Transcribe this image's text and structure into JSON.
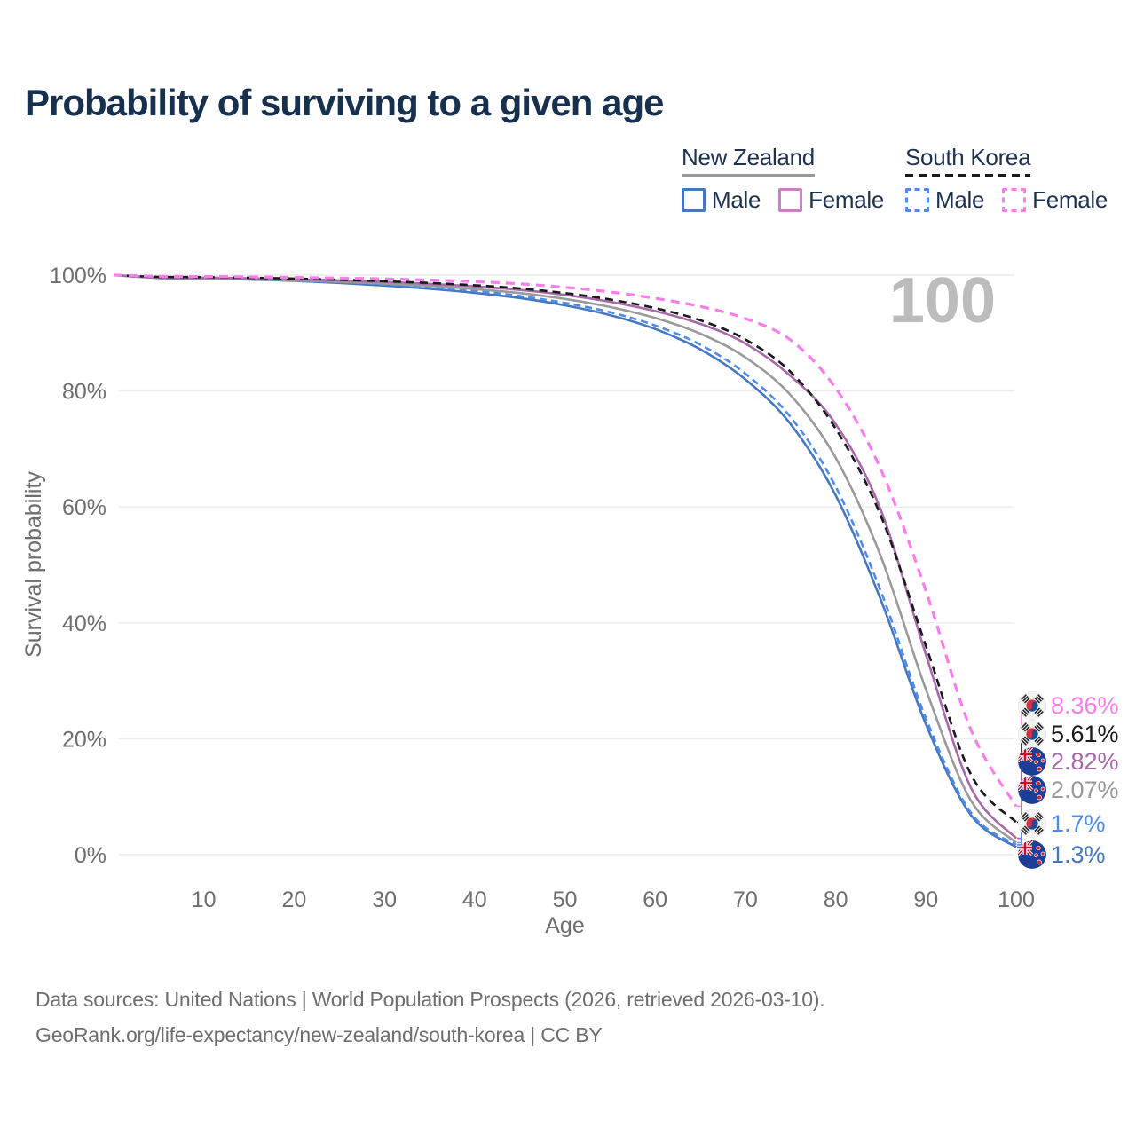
{
  "page": {
    "title": "Probability of surviving to a given age"
  },
  "legend": {
    "groups": [
      {
        "id": "nz",
        "label": "New Zealand",
        "line_style": "solid",
        "underline_color": "#999999",
        "items": [
          {
            "label": "Male",
            "color": "#4678bf",
            "dashed": false
          },
          {
            "label": "Female",
            "color": "#c583c5",
            "dashed": false
          }
        ]
      },
      {
        "id": "kr",
        "label": "South Korea",
        "line_style": "dashed",
        "underline_color": "#1a1a1a",
        "items": [
          {
            "label": "Male",
            "color": "#4e8bf0",
            "dashed": true
          },
          {
            "label": "Female",
            "color": "#fb7ceb",
            "dashed": true
          }
        ]
      }
    ]
  },
  "chart_data": {
    "type": "line",
    "title": "Probability of surviving to a given age",
    "xlabel": "Age",
    "ylabel": "Survival probability",
    "xlim": [
      0,
      100
    ],
    "ylim": [
      0,
      100
    ],
    "x_ticks": [
      10,
      20,
      30,
      40,
      50,
      60,
      70,
      80,
      90,
      100
    ],
    "y_ticks": [
      "0%",
      "20%",
      "40%",
      "60%",
      "80%",
      "100%"
    ],
    "grid": "horizontal-only",
    "legend_position": "top-right",
    "watermark_age": "100",
    "x": [
      0,
      5,
      10,
      15,
      20,
      25,
      30,
      35,
      40,
      45,
      50,
      55,
      60,
      65,
      70,
      75,
      80,
      85,
      90,
      95,
      100
    ],
    "series": [
      {
        "id": "nz_male",
        "name": "New Zealand Male",
        "country": "nz",
        "sex": "male",
        "color": "#4678bf",
        "dashed": false,
        "end_label": "1.3%",
        "values": [
          100,
          99.5,
          99.4,
          99.25,
          99.0,
          98.65,
          98.2,
          97.65,
          96.95,
          96.05,
          94.8,
          93.1,
          90.7,
          87.2,
          82.0,
          74.3,
          62.0,
          44.0,
          22.5,
          6.8,
          1.3
        ]
      },
      {
        "id": "sk_male",
        "name": "South Korea Male",
        "country": "kr",
        "sex": "male",
        "color": "#4e8bf0",
        "dashed": true,
        "end_label": "1.7%",
        "values": [
          100,
          99.6,
          99.5,
          99.35,
          99.1,
          98.8,
          98.4,
          97.9,
          97.3,
          96.4,
          95.2,
          93.6,
          91.3,
          88.0,
          83.0,
          75.5,
          63.5,
          45.5,
          23.5,
          7.2,
          1.7
        ]
      },
      {
        "id": "nz_total",
        "name": "New Zealand",
        "country": "nz",
        "sex": "total",
        "color": "#9a9a9a",
        "dashed": false,
        "end_label": "2.07%",
        "values": [
          100,
          99.55,
          99.45,
          99.3,
          99.1,
          98.85,
          98.55,
          98.15,
          97.6,
          96.9,
          95.9,
          94.5,
          92.6,
          89.9,
          85.8,
          79.3,
          68.5,
          51.5,
          28.5,
          9.3,
          2.07
        ]
      },
      {
        "id": "nz_female",
        "name": "New Zealand Female",
        "country": "nz",
        "sex": "female",
        "color": "#a869aa",
        "dashed": false,
        "end_label": "2.82%",
        "values": [
          100,
          99.6,
          99.55,
          99.45,
          99.3,
          99.1,
          98.85,
          98.5,
          98.05,
          97.45,
          96.6,
          95.4,
          93.8,
          91.6,
          88.2,
          82.6,
          74.3,
          59.5,
          34.5,
          11.5,
          2.82
        ]
      },
      {
        "id": "sk_total",
        "name": "South Korea",
        "country": "kr",
        "sex": "total",
        "color": "#1a1a1a",
        "dashed": true,
        "end_label": "5.61%",
        "values": [
          100,
          99.7,
          99.65,
          99.55,
          99.4,
          99.2,
          98.95,
          98.65,
          98.25,
          97.7,
          96.9,
          95.8,
          94.3,
          92.2,
          88.9,
          83.3,
          73.5,
          58.5,
          36.0,
          13.8,
          5.61
        ]
      },
      {
        "id": "sk_female",
        "name": "South Korea Female",
        "country": "kr",
        "sex": "female",
        "color": "#fb7ceb",
        "dashed": true,
        "end_label": "8.36%",
        "values": [
          100,
          99.8,
          99.75,
          99.7,
          99.6,
          99.5,
          99.35,
          99.15,
          98.9,
          98.5,
          97.9,
          97.1,
          96.0,
          94.6,
          92.5,
          88.8,
          80.5,
          66.5,
          45.5,
          21.5,
          8.36
        ]
      }
    ]
  },
  "footer": {
    "line1": "Data sources: United Nations | World Population Prospects (2026, retrieved 2026-03-10).",
    "line2": "GeoRank.org/life-expectancy/new-zealand/south-korea | CC BY"
  }
}
